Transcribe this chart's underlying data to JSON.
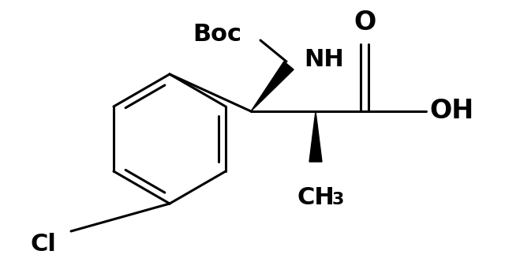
{
  "bg_color": "#ffffff",
  "line_color": "#000000",
  "lw": 2.2,
  "figsize": [
    6.4,
    3.51
  ],
  "dpi": 100,
  "xlim": [
    0,
    640
  ],
  "ylim": [
    0,
    351
  ]
}
